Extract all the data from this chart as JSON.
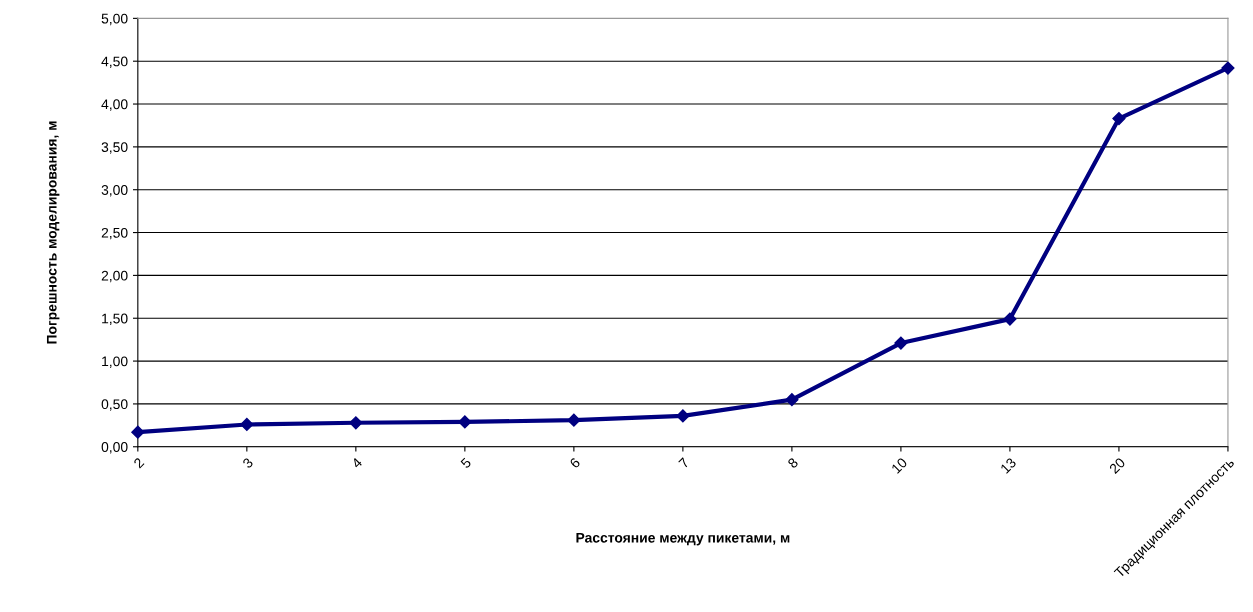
{
  "chart_data": {
    "type": "line",
    "xlabel": "Расстояние между пикетами, м",
    "ylabel": "Погрешность моделирования, м",
    "categories": [
      "2",
      "3",
      "4",
      "5",
      "6",
      "7",
      "8",
      "10",
      "13",
      "20",
      "Традиционная плотность"
    ],
    "series": [
      {
        "color": "#000080",
        "values": [
          0.17,
          0.26,
          0.28,
          0.29,
          0.31,
          0.36,
          0.55,
          1.21,
          1.49,
          3.83,
          4.42
        ]
      }
    ],
    "ylim": [
      0,
      5
    ],
    "yticks": [
      {
        "value": 0,
        "label": "0,00"
      },
      {
        "value": 0.5,
        "label": "0,50"
      },
      {
        "value": 1,
        "label": "1,00"
      },
      {
        "value": 1.5,
        "label": "1,50"
      },
      {
        "value": 2,
        "label": "2,00"
      },
      {
        "value": 2.5,
        "label": "2,50"
      },
      {
        "value": 3,
        "label": "3,00"
      },
      {
        "value": 3.5,
        "label": "3,50"
      },
      {
        "value": 4,
        "label": "4,00"
      },
      {
        "value": 4.5,
        "label": "4,50"
      },
      {
        "value": 5,
        "label": "5,00"
      }
    ],
    "grid": "y",
    "marker": "diamond",
    "line_style": "solid"
  }
}
